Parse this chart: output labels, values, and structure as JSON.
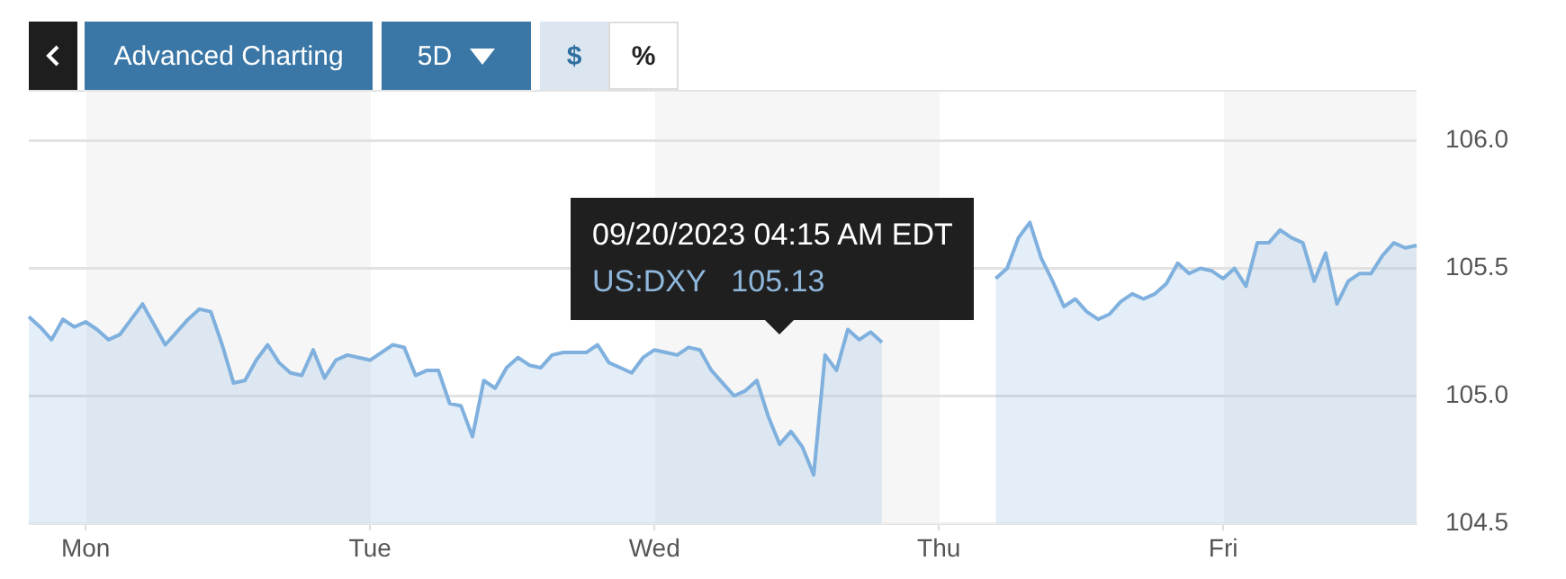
{
  "chart_data": {
    "type": "area",
    "color": "#7fb0de",
    "categories": [
      null,
      null,
      null,
      null,
      null,
      "Mon",
      null,
      null,
      null,
      null,
      null,
      null,
      null,
      null,
      null,
      null,
      null,
      null,
      null,
      null,
      null,
      null,
      null,
      null,
      null,
      null,
      null,
      null,
      null,
      null,
      "Tue",
      null,
      null,
      null,
      null,
      null,
      null,
      null,
      null,
      null,
      null,
      null,
      null,
      null,
      null,
      null,
      null,
      null,
      null,
      null,
      null,
      null,
      null,
      null,
      null,
      "Wed",
      null,
      null,
      null,
      null,
      null,
      null,
      null,
      null,
      null,
      null,
      null,
      null,
      null,
      null,
      null,
      null,
      null,
      null,
      null,
      null,
      null,
      null,
      null,
      null,
      "Thu",
      null,
      null,
      null,
      null,
      null,
      null,
      null,
      null,
      null,
      null,
      null,
      null,
      null,
      null,
      null,
      null,
      null,
      null,
      null,
      null,
      null,
      null,
      null,
      null,
      "Fri",
      null,
      null,
      null,
      null,
      null,
      null,
      null,
      null,
      null,
      null,
      null,
      null,
      null,
      null,
      null,
      null,
      null
    ],
    "values": [
      105.31,
      105.27,
      105.22,
      105.3,
      105.27,
      105.29,
      105.26,
      105.22,
      105.24,
      105.3,
      105.36,
      105.28,
      105.2,
      105.25,
      105.3,
      105.34,
      105.33,
      105.2,
      105.05,
      105.06,
      105.14,
      105.2,
      105.13,
      105.09,
      105.08,
      105.18,
      105.07,
      105.14,
      105.16,
      105.15,
      105.14,
      105.17,
      105.2,
      105.19,
      105.08,
      105.1,
      105.1,
      104.97,
      104.96,
      104.84,
      105.06,
      105.03,
      105.11,
      105.15,
      105.12,
      105.11,
      105.16,
      105.17,
      105.17,
      105.17,
      105.2,
      105.13,
      105.11,
      105.09,
      105.15,
      105.18,
      105.17,
      105.16,
      105.19,
      105.18,
      105.1,
      105.05,
      105.0,
      105.02,
      105.06,
      104.92,
      104.81,
      104.86,
      104.8,
      104.69,
      105.16,
      105.1,
      105.26,
      105.22,
      105.25,
      105.21,
      null,
      null,
      null,
      null,
      null,
      null,
      null,
      null,
      null,
      105.46,
      105.5,
      105.62,
      105.68,
      105.54,
      105.45,
      105.35,
      105.38,
      105.33,
      105.3,
      105.32,
      105.37,
      105.4,
      105.38,
      105.4,
      105.44,
      105.52,
      105.48,
      105.5,
      105.49,
      105.46,
      105.5,
      105.43,
      105.6,
      105.6,
      105.65,
      105.62,
      105.6,
      105.45,
      105.56,
      105.36,
      105.45,
      105.48,
      105.48,
      105.55,
      105.6,
      105.58,
      105.59
    ],
    "ylim": [
      104.5,
      106.2
    ],
    "yticks": [
      {
        "value": 104.5,
        "label": "104.5"
      },
      {
        "value": 105,
        "label": "105.0"
      },
      {
        "value": 105.5,
        "label": "105.5"
      },
      {
        "value": 106,
        "label": "106.0"
      }
    ],
    "grid": "y",
    "annotations": [
      "Advanced Charting",
      "5D",
      "$",
      "%",
      "09/20/2023 04:15 AM EDT",
      "US:DXY   105.13"
    ]
  }
}
